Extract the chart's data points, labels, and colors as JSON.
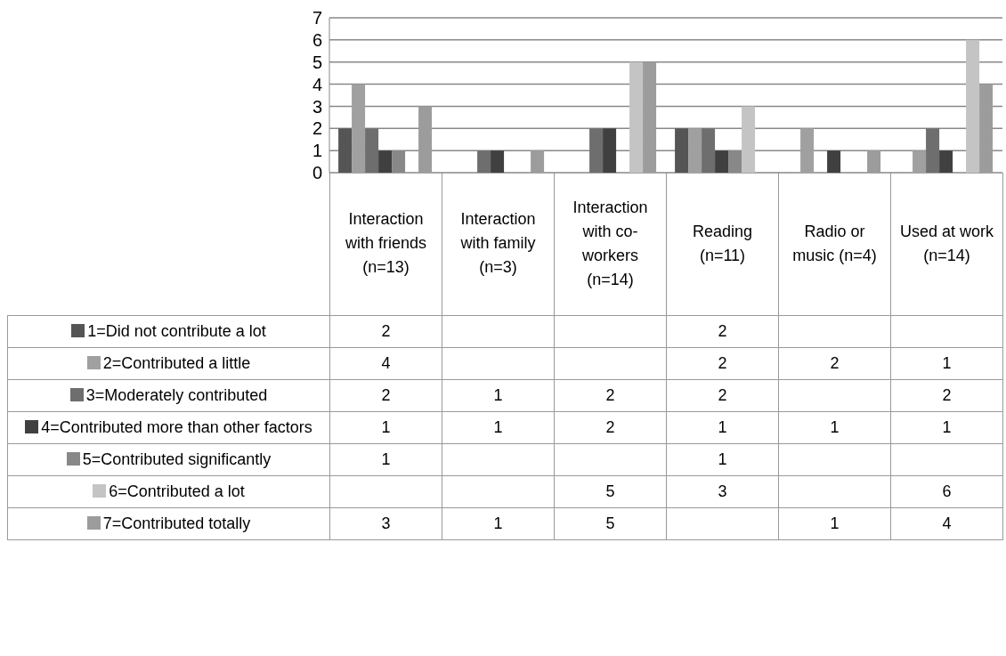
{
  "chart_data": {
    "type": "bar",
    "categories": [
      "Interaction with friends (n=13)",
      "Interaction with family (n=3)",
      "Interaction with co-workers (n=14)",
      "Reading (n=11)",
      "Radio or music (n=4)",
      "Used at work (n=14)"
    ],
    "series": [
      {
        "name": "1=Did not contribute a lot",
        "color": "#555555",
        "values": [
          2,
          null,
          null,
          2,
          null,
          null
        ]
      },
      {
        "name": "2=Contributed a little",
        "color": "#a0a0a0",
        "values": [
          4,
          null,
          null,
          2,
          2,
          1
        ]
      },
      {
        "name": "3=Moderately contributed",
        "color": "#6e6e6e",
        "values": [
          2,
          1,
          2,
          2,
          null,
          2
        ]
      },
      {
        "name": "4=Contributed more than other factors",
        "color": "#404040",
        "values": [
          1,
          1,
          2,
          1,
          1,
          1
        ]
      },
      {
        "name": "5=Contributed significantly",
        "color": "#888888",
        "values": [
          1,
          null,
          null,
          1,
          null,
          null
        ]
      },
      {
        "name": "6=Contributed a lot",
        "color": "#c4c4c4",
        "values": [
          null,
          null,
          5,
          3,
          null,
          6
        ]
      },
      {
        "name": "7=Contributed totally",
        "color": "#9c9c9c",
        "values": [
          3,
          1,
          5,
          null,
          1,
          4
        ]
      }
    ],
    "ylim": [
      0,
      7
    ],
    "yticks": [
      0,
      1,
      2,
      3,
      4,
      5,
      6,
      7
    ],
    "grid": "y",
    "legend": "bottom",
    "data_labels": true
  }
}
